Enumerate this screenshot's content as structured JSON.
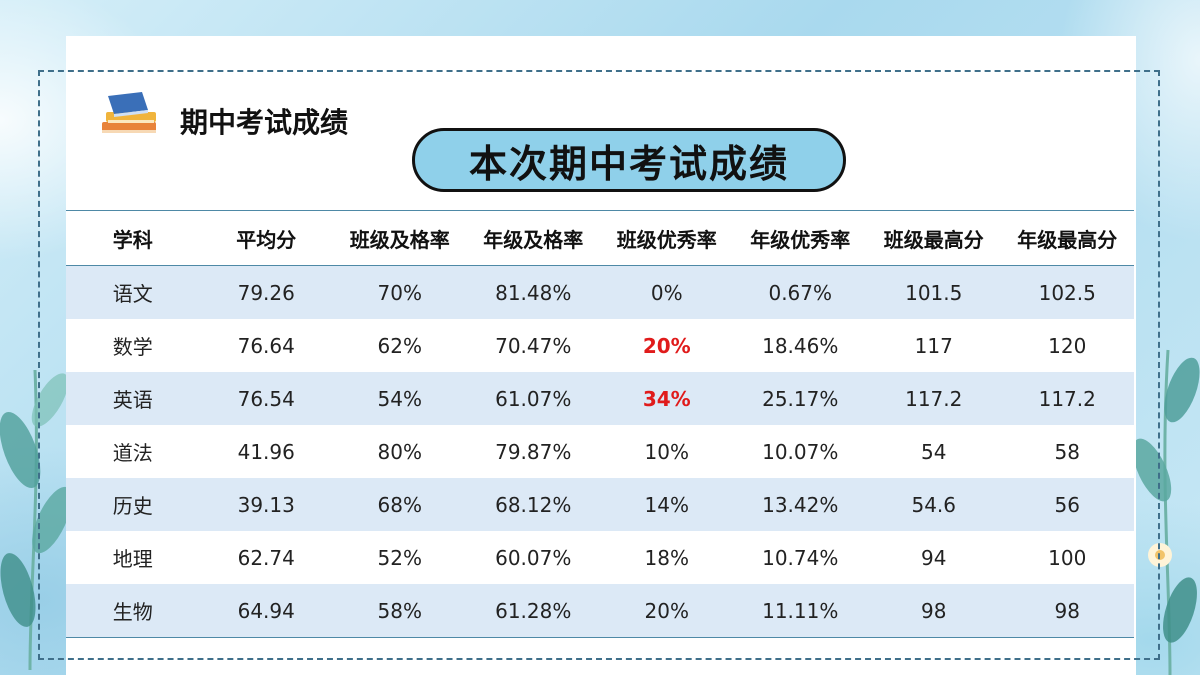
{
  "header": {
    "title": "期中考试成绩",
    "icon": "books-icon"
  },
  "banner": {
    "title": "本次期中考试成绩"
  },
  "colors": {
    "banner_fill": "#8fd0ea",
    "row_stripe": "#dce9f6",
    "highlight": "#e01b1b",
    "border": "#3f6f8a"
  },
  "table": {
    "headers": [
      "学科",
      "平均分",
      "班级及格率",
      "年级及格率",
      "班级优秀率",
      "年级优秀率",
      "班级最高分",
      "年级最高分"
    ],
    "rows": [
      [
        "语文",
        "79.26",
        "70%",
        "81.48%",
        "0%",
        "0.67%",
        "101.5",
        "102.5"
      ],
      [
        "数学",
        "76.64",
        "62%",
        "70.47%",
        "20%",
        "18.46%",
        "117",
        "120"
      ],
      [
        "英语",
        "76.54",
        "54%",
        "61.07%",
        "34%",
        "25.17%",
        "117.2",
        "117.2"
      ],
      [
        "道法",
        "41.96",
        "80%",
        "79.87%",
        "10%",
        "10.07%",
        "54",
        "58"
      ],
      [
        "历史",
        "39.13",
        "68%",
        "68.12%",
        "14%",
        "13.42%",
        "54.6",
        "56"
      ],
      [
        "地理",
        "62.74",
        "52%",
        "60.07%",
        "18%",
        "10.74%",
        "94",
        "100"
      ],
      [
        "生物",
        "64.94",
        "58%",
        "61.28%",
        "20%",
        "11.11%",
        "98",
        "98"
      ]
    ],
    "highlighted": [
      [
        1,
        4
      ],
      [
        2,
        4
      ]
    ]
  }
}
